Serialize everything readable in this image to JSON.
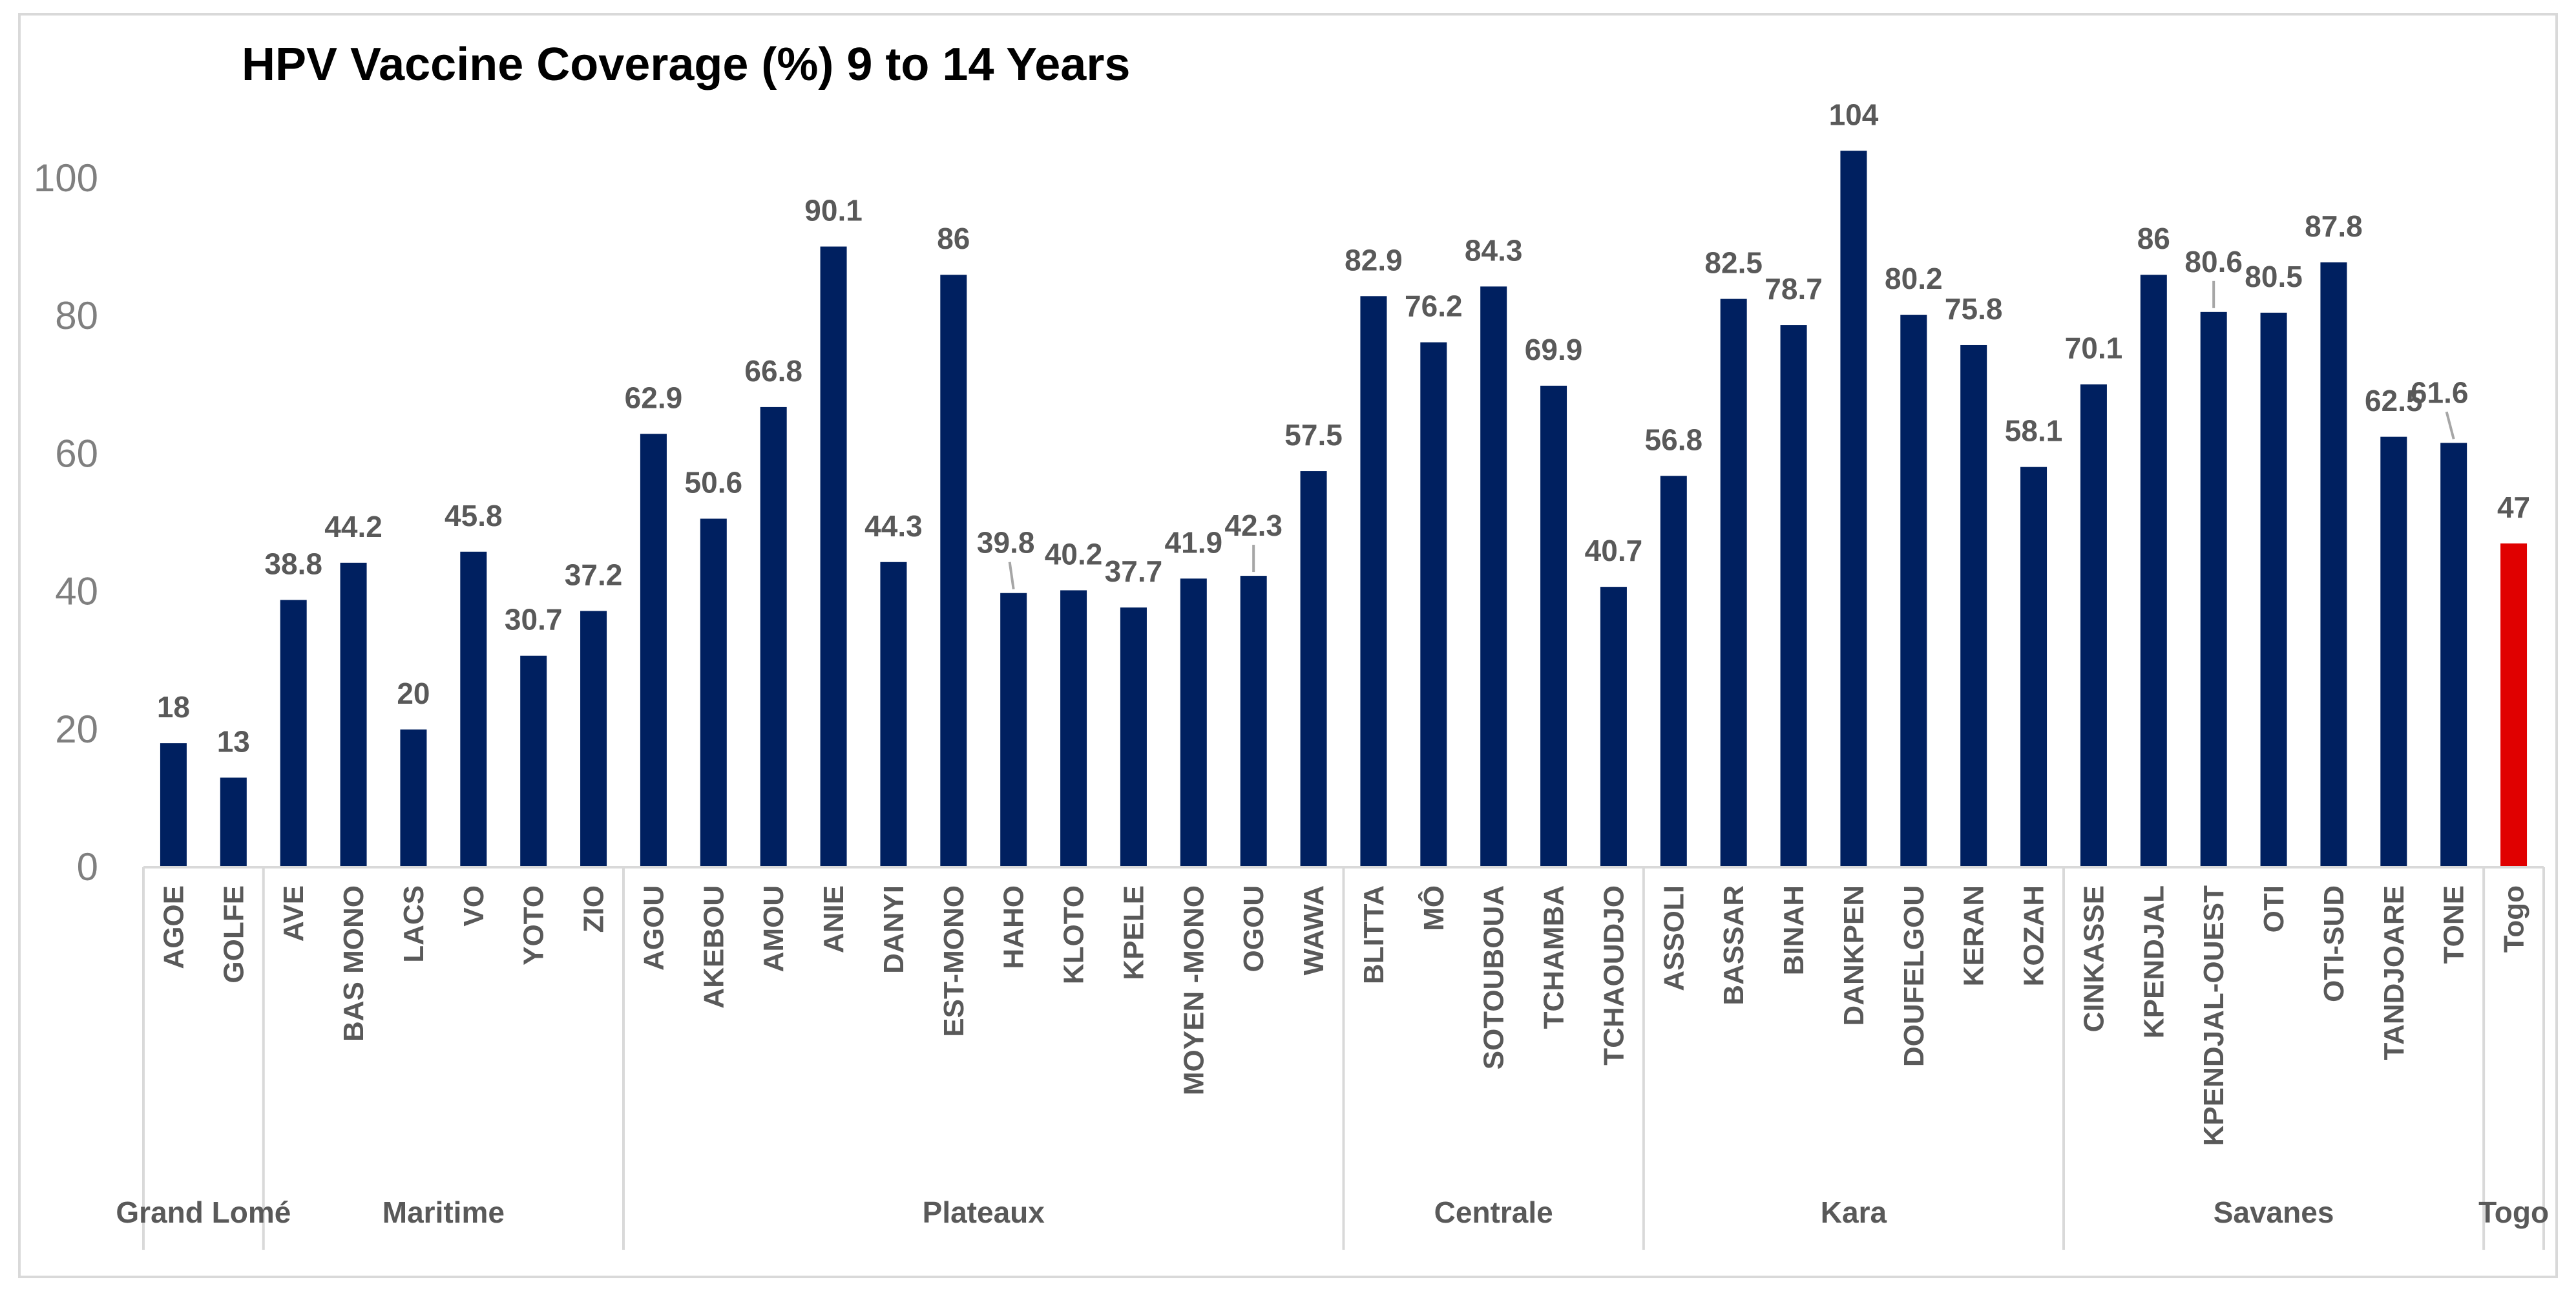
{
  "chart_data": {
    "type": "bar",
    "title": "HPV Vaccine Coverage (%) 9 to 14 Years",
    "xlabel": "",
    "ylabel": "",
    "ylim": [
      0,
      110
    ],
    "yticks": [
      0,
      20,
      40,
      60,
      80,
      100
    ],
    "grid": false,
    "legend": "none",
    "colors": {
      "default": "#002060",
      "highlight": "#e00000",
      "axis": "#d9d9d9",
      "tick_text": "#7f7f7f",
      "label_text": "#595959"
    },
    "categories": [
      "AGOE",
      "GOLFE",
      "AVE",
      "BAS MONO",
      "LACS",
      "VO",
      "YOTO",
      "ZIO",
      "AGOU",
      "AKEBOU",
      "AMOU",
      "ANIE",
      "DANYI",
      "EST-MONO",
      "HAHO",
      "KLOTO",
      "KPELE",
      "MOYEN -MONO",
      "OGOU",
      "WAWA",
      "BLITTA",
      "MÔ",
      "SOTOUBOUA",
      "TCHAMBA",
      "TCHAOUDJO",
      "ASSOLI",
      "BASSAR",
      "BINAH",
      "DANKPEN",
      "DOUFELGOU",
      "KERAN",
      "KOZAH",
      "CINKASSE",
      "KPENDJAL",
      "KPENDJAL-OUEST",
      "OTI",
      "OTI-SUD",
      "TANDJOARE",
      "TONE",
      "Togo"
    ],
    "values": [
      18,
      13,
      38.8,
      44.2,
      20,
      45.8,
      30.7,
      37.2,
      62.9,
      50.6,
      66.8,
      90.1,
      44.3,
      86,
      39.8,
      40.2,
      37.7,
      41.9,
      42.3,
      57.5,
      82.9,
      76.2,
      84.3,
      69.9,
      40.7,
      56.8,
      82.5,
      78.7,
      104,
      80.2,
      75.8,
      58.1,
      70.1,
      86,
      80.6,
      80.5,
      87.8,
      62.5,
      61.6,
      47
    ],
    "value_labels": [
      "18",
      "13",
      "38.8",
      "44.2",
      "20",
      "45.8",
      "30.7",
      "37.2",
      "62.9",
      "50.6",
      "66.8",
      "90.1",
      "44.3",
      "86",
      "39.8",
      "40.2",
      "37.7",
      "41.9",
      "42.3",
      "57.5",
      "82.9",
      "76.2",
      "84.3",
      "69.9",
      "40.7",
      "56.8",
      "82.5",
      "78.7",
      "104",
      "80.2",
      "75.8",
      "58.1",
      "70.1",
      "86",
      "80.6",
      "80.5",
      "87.8",
      "62.5",
      "61.6",
      "47"
    ],
    "highlight_category": "Togo",
    "groups": [
      {
        "name": "Grand Lomé",
        "count": 2
      },
      {
        "name": "Maritime",
        "count": 6
      },
      {
        "name": "Plateaux",
        "count": 12
      },
      {
        "name": "Centrale",
        "count": 5
      },
      {
        "name": "Kara",
        "count": 7
      },
      {
        "name": "Savanes",
        "count": 7
      },
      {
        "name": "Togo",
        "count": 1
      }
    ]
  }
}
